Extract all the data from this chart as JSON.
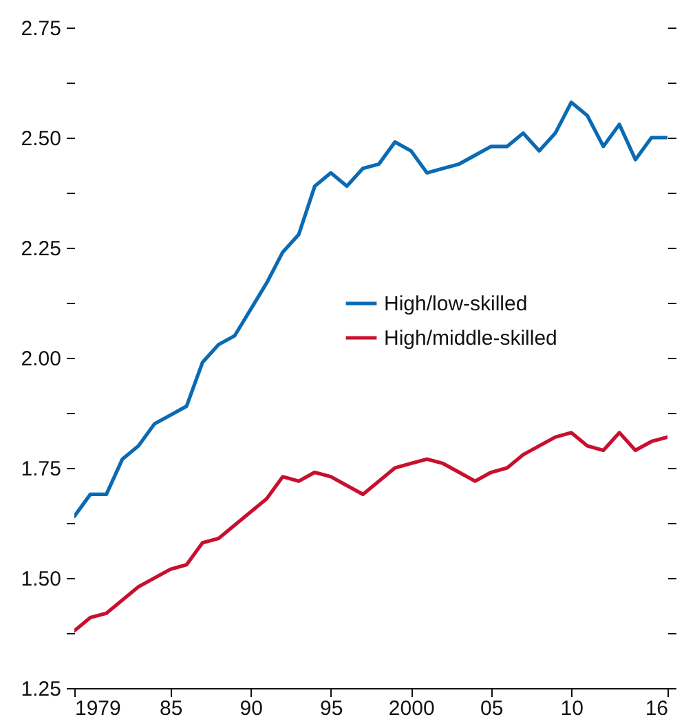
{
  "chart_data": {
    "type": "line",
    "x": [
      1979,
      1980,
      1981,
      1982,
      1983,
      1984,
      1985,
      1986,
      1987,
      1988,
      1989,
      1990,
      1991,
      1992,
      1993,
      1994,
      1995,
      1996,
      1997,
      1998,
      1999,
      2000,
      2001,
      2002,
      2003,
      2004,
      2005,
      2006,
      2007,
      2008,
      2009,
      2010,
      2011,
      2012,
      2013,
      2014,
      2015,
      2016
    ],
    "series": [
      {
        "name": "High/low-skilled",
        "color": "#0a6ab3",
        "values": [
          1.64,
          1.69,
          1.69,
          1.77,
          1.8,
          1.85,
          1.87,
          1.89,
          1.99,
          2.03,
          2.05,
          2.11,
          2.17,
          2.24,
          2.28,
          2.39,
          2.42,
          2.39,
          2.43,
          2.44,
          2.49,
          2.47,
          2.42,
          2.43,
          2.44,
          2.46,
          2.48,
          2.48,
          2.51,
          2.47,
          2.51,
          2.58,
          2.55,
          2.48,
          2.53,
          2.45,
          2.5,
          2.5
        ]
      },
      {
        "name": "High/middle-skilled",
        "color": "#c8102e",
        "values": [
          1.38,
          1.41,
          1.42,
          1.45,
          1.48,
          1.5,
          1.52,
          1.53,
          1.58,
          1.59,
          1.62,
          1.65,
          1.68,
          1.73,
          1.72,
          1.74,
          1.73,
          1.71,
          1.69,
          1.72,
          1.75,
          1.76,
          1.77,
          1.76,
          1.74,
          1.72,
          1.74,
          1.75,
          1.78,
          1.8,
          1.82,
          1.83,
          1.8,
          1.79,
          1.83,
          1.79,
          1.81,
          1.82
        ]
      }
    ],
    "xlim": [
      1979,
      2016
    ],
    "xticks": [
      1979,
      {
        "value": 1985,
        "label": "85"
      },
      {
        "value": 1990,
        "label": "90"
      },
      {
        "value": 1995,
        "label": "95"
      },
      2000,
      {
        "value": 2005,
        "label": "05"
      },
      {
        "value": 2010,
        "label": "10"
      },
      {
        "value": 2016,
        "label": "16"
      }
    ],
    "ylim": [
      1.25,
      2.75
    ],
    "yticks": [
      1.25,
      {
        "value": 1.375,
        "label": null
      },
      {
        "value": 1.5,
        "label": "1.50"
      },
      {
        "value": 1.625,
        "label": null
      },
      1.75,
      {
        "value": 1.875,
        "label": null
      },
      {
        "value": 2.0,
        "label": "2.00"
      },
      {
        "value": 2.125,
        "label": null
      },
      2.25,
      {
        "value": 2.375,
        "label": null
      },
      {
        "value": 2.5,
        "label": "2.50"
      },
      {
        "value": 2.625,
        "label": null
      },
      2.75
    ],
    "tick_labels": "xy",
    "grid": false,
    "legend": "right",
    "line_style": "solid",
    "marker": "none"
  }
}
